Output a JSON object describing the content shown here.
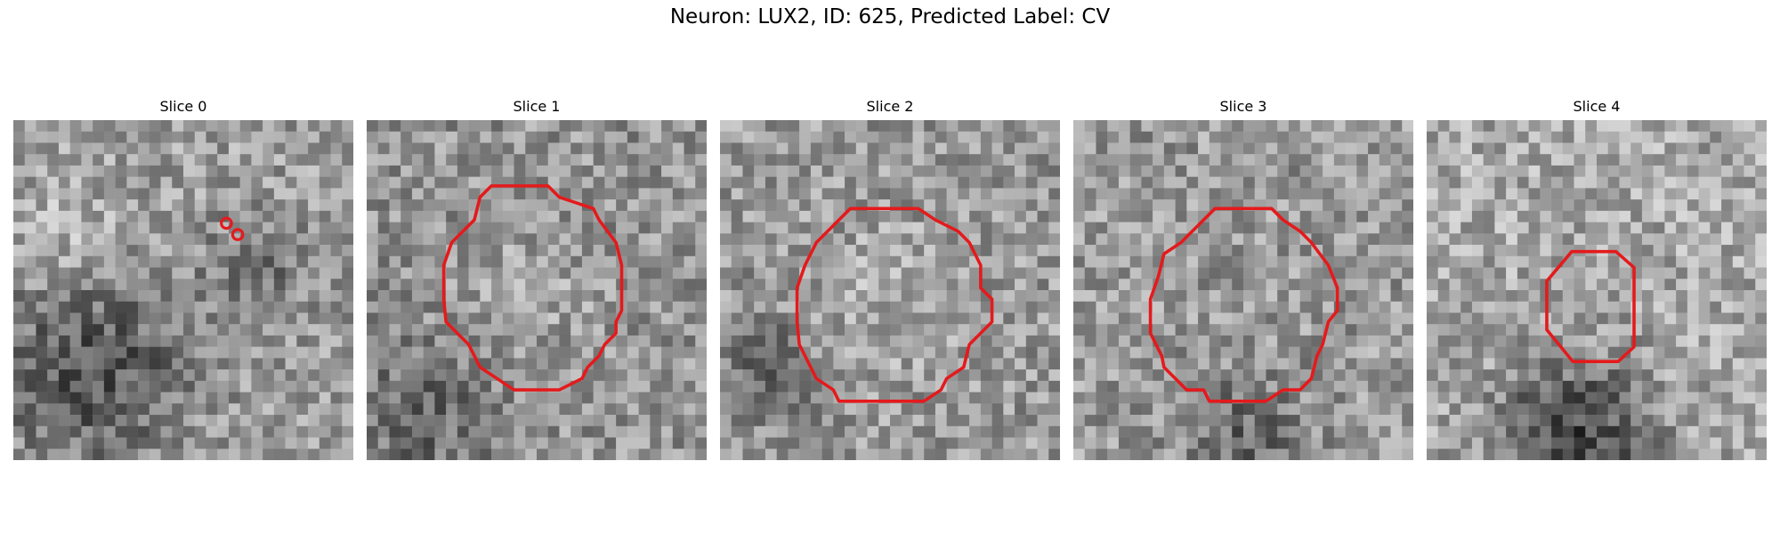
{
  "figure": {
    "title": "Neuron: LUX2, ID: 625, Predicted Label: CV"
  },
  "panels": [
    {
      "title": "Slice 0",
      "contour_color": "#e41a1c"
    },
    {
      "title": "Slice 1",
      "contour_color": "#e41a1c"
    },
    {
      "title": "Slice 2",
      "contour_color": "#e41a1c"
    },
    {
      "title": "Slice 3",
      "contour_color": "#e41a1c"
    },
    {
      "title": "Slice 4",
      "contour_color": "#e41a1c"
    }
  ]
}
